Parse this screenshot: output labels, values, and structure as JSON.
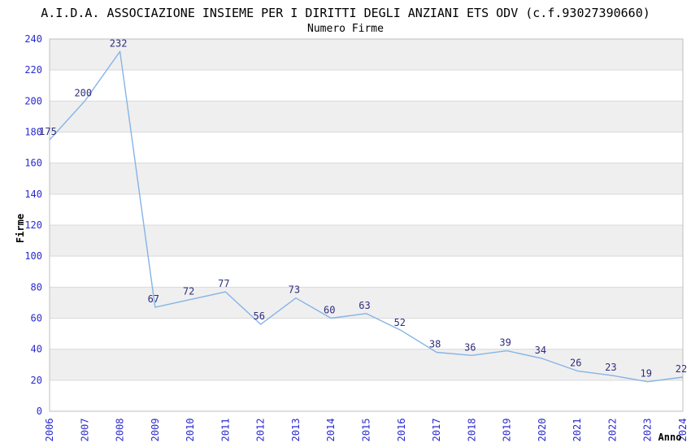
{
  "chart_data": {
    "type": "line",
    "title": "A.I.D.A. ASSOCIAZIONE INSIEME PER I DIRITTI DEGLI ANZIANI ETS ODV (c.f.93027390660)",
    "subtitle": "Numero Firme",
    "xlabel": "Anno",
    "ylabel": "Firme",
    "categories": [
      "2006",
      "2007",
      "2008",
      "2009",
      "2010",
      "2011",
      "2012",
      "2013",
      "2014",
      "2015",
      "2016",
      "2017",
      "2018",
      "2019",
      "2020",
      "2021",
      "2022",
      "2023",
      "2024"
    ],
    "values": [
      175,
      200,
      232,
      67,
      72,
      77,
      56,
      73,
      60,
      63,
      52,
      38,
      36,
      39,
      34,
      26,
      23,
      19,
      22
    ],
    "ylim": [
      0,
      240
    ],
    "ytick_step": 20,
    "grid": "horizontal-bands",
    "legend": "none",
    "point_labels_shown": true,
    "colors": {
      "line": "#85b4e6",
      "point_label": "#2e2e7d",
      "tick_label": "#2a2ad0",
      "band": "#efefef",
      "gridline": "#d9d9d9",
      "plot_border": "#bfbfbf",
      "text": "#000000"
    }
  }
}
